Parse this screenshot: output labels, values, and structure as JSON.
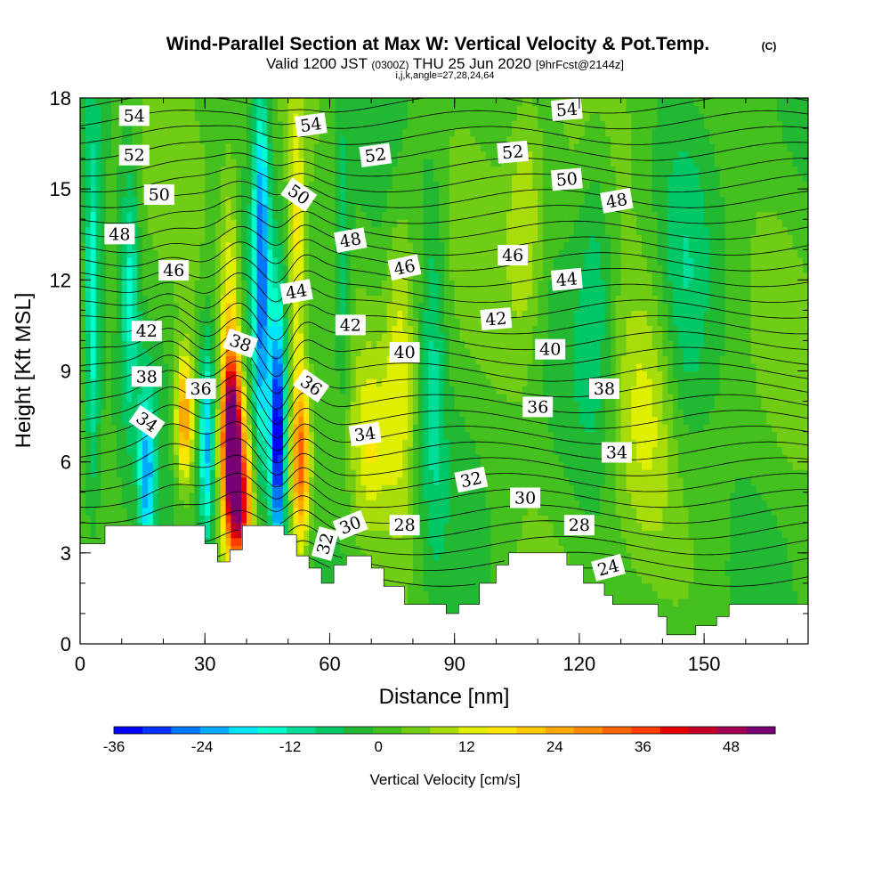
{
  "chart_data": {
    "type": "heatmap",
    "title": "Wind-Parallel Section at Max W: Vertical Velocity & Pot.Temp.",
    "title_mark": "(C)",
    "subtitle_prefix": "Valid 1200 JST",
    "subtitle_utc": "(0300Z)",
    "subtitle_date": "THU 25 Jun 2020",
    "subtitle_fcst": "[9hrFcst@2144z]",
    "subtitle2": "i,j,k,angle=27,28,24,64",
    "xlabel": "Distance [nm]",
    "ylabel": "Height [Kft MSL]",
    "xlim": [
      0,
      175
    ],
    "ylim": [
      0,
      18
    ],
    "x_ticks": [
      "0",
      "30",
      "60",
      "90",
      "120",
      "150"
    ],
    "x_tick_values": [
      0,
      30,
      60,
      90,
      120,
      150
    ],
    "y_ticks": [
      "0",
      "3",
      "6",
      "9",
      "12",
      "15",
      "18"
    ],
    "y_tick_values": [
      0,
      3,
      6,
      9,
      12,
      15,
      18
    ],
    "colorbar": {
      "label": "Vertical Velocity [cm/s]",
      "min": -36,
      "max": 54,
      "step": 4,
      "tick_labels": [
        "-36",
        "-24",
        "-12",
        "0",
        "12",
        "24",
        "36",
        "48"
      ],
      "tick_values": [
        -36,
        -24,
        -12,
        0,
        12,
        24,
        36,
        48
      ],
      "colors": [
        "#0000ff",
        "#0033ff",
        "#0077ff",
        "#00aaff",
        "#00e5ff",
        "#00ffcc",
        "#00dd99",
        "#00c866",
        "#22b833",
        "#44c11e",
        "#70cc14",
        "#a8dc0a",
        "#e0ee00",
        "#ffe600",
        "#ffc800",
        "#ffaa00",
        "#ff8c00",
        "#ff6400",
        "#ff3c00",
        "#e60000",
        "#c4002a",
        "#a00055",
        "#780075"
      ]
    },
    "theta_contour_labels": [
      {
        "text": "54",
        "x": 13,
        "y": 17.4,
        "rot": 0
      },
      {
        "text": "52",
        "x": 13,
        "y": 16.1,
        "rot": 0
      },
      {
        "text": "50",
        "x": 19,
        "y": 14.8,
        "rot": 0
      },
      {
        "text": "48",
        "x": 9.5,
        "y": 13.5,
        "rot": 0
      },
      {
        "text": "46",
        "x": 22.5,
        "y": 12.3,
        "rot": 0
      },
      {
        "text": "42",
        "x": 16,
        "y": 10.3,
        "rot": 0
      },
      {
        "text": "38",
        "x": 16,
        "y": 8.8,
        "rot": 0
      },
      {
        "text": "36",
        "x": 29,
        "y": 8.4,
        "rot": 0
      },
      {
        "text": "34",
        "x": 16,
        "y": 7.3,
        "rot": 35
      },
      {
        "text": "54",
        "x": 55.5,
        "y": 17.1,
        "rot": -8
      },
      {
        "text": "50",
        "x": 52.5,
        "y": 14.8,
        "rot": 35
      },
      {
        "text": "44",
        "x": 52,
        "y": 11.6,
        "rot": -10
      },
      {
        "text": "38",
        "x": 38.5,
        "y": 9.9,
        "rot": 20
      },
      {
        "text": "36",
        "x": 55.5,
        "y": 8.5,
        "rot": 35
      },
      {
        "text": "52",
        "x": 71,
        "y": 16.1,
        "rot": -8
      },
      {
        "text": "48",
        "x": 65,
        "y": 13.3,
        "rot": -10
      },
      {
        "text": "46",
        "x": 78,
        "y": 12.4,
        "rot": -12
      },
      {
        "text": "42",
        "x": 65,
        "y": 10.5,
        "rot": 0
      },
      {
        "text": "40",
        "x": 78,
        "y": 9.6,
        "rot": 0
      },
      {
        "text": "34",
        "x": 68.5,
        "y": 6.9,
        "rot": -8
      },
      {
        "text": "32",
        "x": 59,
        "y": 3.3,
        "rot": -75
      },
      {
        "text": "30",
        "x": 65,
        "y": 3.9,
        "rot": -22
      },
      {
        "text": "28",
        "x": 78,
        "y": 3.9,
        "rot": 0
      },
      {
        "text": "32",
        "x": 94,
        "y": 5.4,
        "rot": -12
      },
      {
        "text": "30",
        "x": 107,
        "y": 4.8,
        "rot": 0
      },
      {
        "text": "52",
        "x": 104,
        "y": 16.2,
        "rot": -5
      },
      {
        "text": "46",
        "x": 104,
        "y": 12.8,
        "rot": 0
      },
      {
        "text": "42",
        "x": 100,
        "y": 10.7,
        "rot": -5
      },
      {
        "text": "36",
        "x": 110,
        "y": 7.8,
        "rot": 0
      },
      {
        "text": "54",
        "x": 117,
        "y": 17.6,
        "rot": -5
      },
      {
        "text": "50",
        "x": 117,
        "y": 15.3,
        "rot": -5
      },
      {
        "text": "44",
        "x": 117,
        "y": 12,
        "rot": -5
      },
      {
        "text": "40",
        "x": 113,
        "y": 9.7,
        "rot": 0
      },
      {
        "text": "28",
        "x": 120,
        "y": 3.9,
        "rot": 0
      },
      {
        "text": "48",
        "x": 129,
        "y": 14.6,
        "rot": -10
      },
      {
        "text": "38",
        "x": 126,
        "y": 8.4,
        "rot": 0
      },
      {
        "text": "34",
        "x": 129,
        "y": 6.3,
        "rot": 0
      },
      {
        "text": "24",
        "x": 127,
        "y": 2.5,
        "rot": -15
      }
    ]
  }
}
